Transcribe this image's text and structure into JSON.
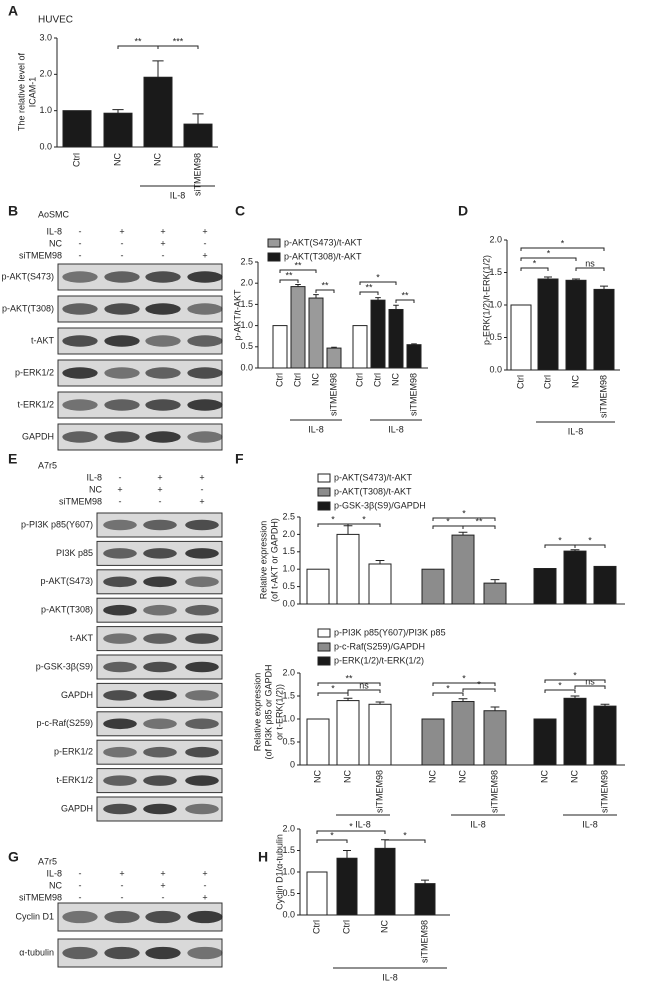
{
  "chart_data": [
    {
      "type": "bar",
      "panel_label": "A",
      "title": "HUVEC",
      "y_label": [
        "The relative level of",
        "ICAM-1"
      ],
      "categories": [
        "Ctrl",
        "NC",
        "NC",
        "siTMEM98"
      ],
      "group_label": "IL-8",
      "series": [
        {
          "color": "#1a1a1a",
          "values": [
            1.0,
            0.93,
            1.92,
            0.63
          ],
          "errors": [
            null,
            0.1,
            0.45,
            0.28
          ]
        }
      ],
      "ylim": [
        0,
        3
      ],
      "yticks": [
        {
          "value": 0,
          "label": "0.0"
        },
        {
          "value": 1,
          "label": "1.0"
        },
        {
          "value": 2,
          "label": "2.0"
        },
        {
          "value": 3,
          "label": "3.0"
        }
      ],
      "annotations": [
        "**",
        "***"
      ]
    },
    {
      "type": "bar",
      "panel_label": "C",
      "y_label": [
        "p-AKT/t-AKT"
      ],
      "categories": [
        "Ctrl",
        "Ctrl",
        "NC",
        "siTMEM98"
      ],
      "group_label": "IL-8",
      "control_color": "#ffffff",
      "series": [
        {
          "name": "p-AKT(S473)/t-AKT",
          "color": "#9a9a9a",
          "values": [
            1.0,
            1.92,
            1.65,
            0.47
          ],
          "errors": [
            null,
            0.05,
            0.08,
            0.02
          ]
        },
        {
          "name": "p-AKT(T308)/t-AKT",
          "color": "#1a1a1a",
          "values": [
            1.0,
            1.6,
            1.38,
            0.55
          ],
          "errors": [
            null,
            0.06,
            0.1,
            0.02
          ]
        }
      ],
      "ylim": [
        0,
        2.5
      ],
      "yticks": [
        {
          "value": 0,
          "label": "0.0"
        },
        0.5,
        {
          "value": 1,
          "label": "1.0"
        },
        1.5,
        {
          "value": 2,
          "label": "2.0"
        },
        2.5
      ],
      "annotations": [
        "**",
        "**",
        "**",
        "**",
        "*",
        "**"
      ]
    },
    {
      "type": "bar",
      "panel_label": "D",
      "y_label": [
        "p-ERK(1/2)/t-ERK(1/2)"
      ],
      "categories": [
        "Ctrl",
        "Ctrl",
        "NC",
        "siTMEM98"
      ],
      "group_label": "IL-8",
      "control_color": "#ffffff",
      "series": [
        {
          "color": "#1a1a1a",
          "values": [
            1.0,
            1.4,
            1.38,
            1.24
          ],
          "errors": [
            null,
            0.03,
            0.02,
            0.05
          ]
        }
      ],
      "ylim": [
        0,
        2
      ],
      "yticks": [
        {
          "value": 0,
          "label": "0.0"
        },
        0.5,
        {
          "value": 1,
          "label": "1.0"
        },
        1.5,
        {
          "value": 2,
          "label": "2.0"
        }
      ],
      "annotations": [
        "*",
        "*",
        "*",
        "ns"
      ]
    },
    {
      "type": "bar",
      "panel_label": "F",
      "y_label": [
        "Relative expression",
        "(of t-AKT or GAPDH)"
      ],
      "series": [
        {
          "name": "p-AKT(S473)/t-AKT",
          "color": "#ffffff",
          "values": [
            1.0,
            2.0,
            1.15
          ],
          "errors": [
            null,
            0.25,
            0.1
          ]
        },
        {
          "name": "p-AKT(T308)/t-AKT",
          "color": "#8c8c8c",
          "values": [
            1.0,
            1.98,
            0.6
          ],
          "errors": [
            null,
            0.08,
            0.1
          ]
        },
        {
          "name": "p-GSK-3β(S9)/GAPDH",
          "color": "#1a1a1a",
          "values": [
            1.02,
            1.52,
            1.08
          ],
          "errors": [
            null,
            0.04,
            null
          ]
        }
      ],
      "ylim": [
        0,
        2.5
      ],
      "yticks": [
        {
          "value": 0,
          "label": "0.0"
        },
        0.5,
        {
          "value": 1,
          "label": "1.0"
        },
        1.5,
        {
          "value": 2,
          "label": "2.0"
        },
        2.5
      ],
      "annotations": [
        "*",
        "*",
        "*",
        "*",
        "**",
        "*",
        "*"
      ]
    },
    {
      "type": "bar",
      "y_label": [
        "Relative expression",
        "(of PI3K p85 or GAPDH",
        "or t-ERK(1/2))"
      ],
      "categories": [
        "NC",
        "NC",
        "siTMEM98"
      ],
      "group_label": "IL-8",
      "series": [
        {
          "name": "p-PI3K p85(Y607)/PI3K p85",
          "color": "#ffffff",
          "values": [
            1.0,
            1.4,
            1.32
          ],
          "errors": [
            null,
            0.05,
            0.05
          ]
        },
        {
          "name": "p-c-Raf(S259)/GAPDH",
          "color": "#8c8c8c",
          "values": [
            1.0,
            1.38,
            1.18
          ],
          "errors": [
            null,
            0.06,
            0.08
          ]
        },
        {
          "name": "p-ERK(1/2)/t-ERK(1/2)",
          "color": "#1a1a1a",
          "values": [
            1.0,
            1.45,
            1.28
          ],
          "errors": [
            null,
            0.05,
            0.04
          ]
        }
      ],
      "ylim": [
        0,
        2
      ],
      "yticks": [
        0,
        0.5,
        {
          "value": 1,
          "label": "1.0"
        },
        1.5,
        {
          "value": 2,
          "label": "2.0"
        }
      ],
      "annotations": [
        "**",
        "*",
        "ns",
        "*",
        "*",
        "*",
        "*",
        "*",
        "ns"
      ]
    },
    {
      "type": "bar",
      "panel_label": "H",
      "y_label": [
        "Cyclin D1/α-tubulin"
      ],
      "categories": [
        "Ctrl",
        "Ctrl",
        "NC",
        "siTMEM98"
      ],
      "group_label": "IL-8",
      "control_color": "#ffffff",
      "series": [
        {
          "color": "#1a1a1a",
          "values": [
            1.0,
            1.32,
            1.55,
            0.73
          ],
          "errors": [
            null,
            0.18,
            0.2,
            0.08
          ]
        }
      ],
      "ylim": [
        0,
        2
      ],
      "yticks": [
        {
          "value": 0,
          "label": "0.0"
        },
        0.5,
        {
          "value": 1,
          "label": "1.0"
        },
        1.5,
        {
          "value": 2,
          "label": "2.0"
        }
      ],
      "annotations": [
        "*",
        "*",
        "*"
      ]
    }
  ],
  "blots": [
    {
      "panel_label": "B",
      "cell_line": "AoSMC",
      "conditions": [
        {
          "label": "IL-8",
          "signs": [
            "-",
            "+",
            "+",
            "+"
          ]
        },
        {
          "label": "NC",
          "signs": [
            "-",
            "-",
            "+",
            "-"
          ]
        },
        {
          "label": "siTMEM98",
          "signs": [
            "-",
            "-",
            "-",
            "+"
          ]
        }
      ],
      "proteins": [
        "p-AKT(S473)",
        "p-AKT(T308)",
        "t-AKT",
        "p-ERK1/2",
        "t-ERK1/2",
        "GAPDH"
      ]
    },
    {
      "panel_label": "E",
      "cell_line": "A7r5",
      "conditions": [
        {
          "label": "IL-8",
          "signs": [
            "-",
            "+",
            "+"
          ]
        },
        {
          "label": "NC",
          "signs": [
            "+",
            "+",
            "-"
          ]
        },
        {
          "label": "siTMEM98",
          "signs": [
            "-",
            "-",
            "+"
          ]
        }
      ],
      "proteins": [
        "p-PI3K p85(Y607)",
        "PI3K p85",
        "p-AKT(S473)",
        "p-AKT(T308)",
        "t-AKT",
        "p-GSK-3β(S9)",
        "GAPDH",
        "p-c-Raf(S259)",
        "p-ERK1/2",
        "t-ERK1/2",
        "GAPDH"
      ]
    },
    {
      "panel_label": "G",
      "cell_line": "A7r5",
      "conditions": [
        {
          "label": "IL-8",
          "signs": [
            "-",
            "+",
            "+",
            "+"
          ]
        },
        {
          "label": "NC",
          "signs": [
            "-",
            "-",
            "+",
            "-"
          ]
        },
        {
          "label": "siTMEM98",
          "signs": [
            "-",
            "-",
            "-",
            "+"
          ]
        }
      ],
      "proteins": [
        "Cyclin D1",
        "α-tubulin"
      ]
    }
  ]
}
